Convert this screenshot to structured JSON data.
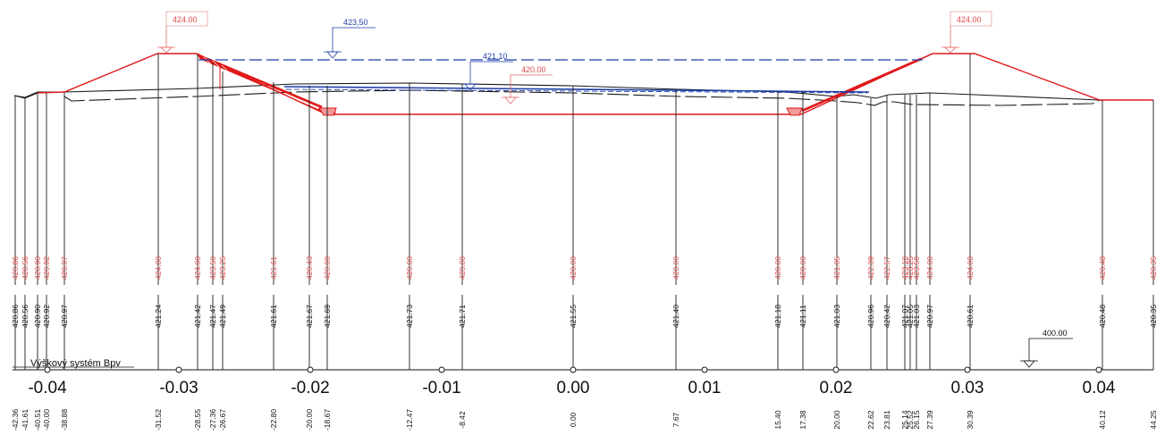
{
  "colors": {
    "design": "#e11a1a",
    "terrain": "#1a1a1a",
    "water": "#1f3fa6",
    "label_red": "#e24a4a"
  },
  "levels": {
    "crest_left": "424.00",
    "crest_right": "424.00",
    "flood_level": "423,50",
    "normal_level": "421,10",
    "bottom_level": "420.00",
    "datum": "400.00"
  },
  "reference_system": "Výškový systém Bpv",
  "axis_ticks": [
    "-0.04",
    "-0.03",
    "-0.02",
    "-0.01",
    "0.00",
    "0.01",
    "0.02",
    "0.03",
    "0.04"
  ],
  "columns": [
    {
      "design": "420.86",
      "terrain": "420.86",
      "distance": "-42.36"
    },
    {
      "design": "420.56",
      "terrain": "420.56",
      "distance": "-41.61"
    },
    {
      "design": "420.90",
      "terrain": "420.90",
      "distance": "-40.51"
    },
    {
      "design": "420.92",
      "terrain": "420.92",
      "distance": "-40.00"
    },
    {
      "design": "420.97",
      "terrain": "420.97",
      "distance": "-38.88"
    },
    {
      "design": "424.00",
      "terrain": "421.24",
      "distance": "-31.52"
    },
    {
      "design": "424.00",
      "terrain": "421.42",
      "distance": "-28.55"
    },
    {
      "design": "423.50",
      "terrain": "421.47",
      "distance": "-27.36"
    },
    {
      "design": "423.25",
      "terrain": "421.49",
      "distance": "-26.67"
    },
    {
      "design": "421.61",
      "terrain": "421.61",
      "distance": "-22.80"
    },
    {
      "design": "420.43",
      "terrain": "421.67",
      "distance": "-20.00"
    },
    {
      "design": "420.00",
      "terrain": "421.69",
      "distance": "-18.67"
    },
    {
      "design": "420.00",
      "terrain": "421.73",
      "distance": "-12.47"
    },
    {
      "design": "420.00",
      "terrain": "421.71",
      "distance": "-8.42"
    },
    {
      "design": "420.00",
      "terrain": "421.55",
      "distance": "0.00"
    },
    {
      "design": "420.00",
      "terrain": "421.40",
      "distance": "7.67"
    },
    {
      "design": "420.00",
      "terrain": "421.18",
      "distance": "15.40"
    },
    {
      "design": "420.00",
      "terrain": "421.11",
      "distance": "17.38"
    },
    {
      "design": "421.05",
      "terrain": "421.03",
      "distance": "20.00"
    },
    {
      "design": "422.09",
      "terrain": "420.96",
      "distance": "22.62"
    },
    {
      "design": "422.57",
      "terrain": "420.42",
      "distance": "23.81"
    },
    {
      "design": "423.10",
      "terrain": "421.07",
      "distance": "25.14"
    },
    {
      "design": "423.25",
      "terrain": "421.05",
      "distance": "25.52"
    },
    {
      "design": "423.50",
      "terrain": "421.03",
      "distance": "26.15"
    },
    {
      "design": "424.00",
      "terrain": "420.97",
      "distance": "27.39"
    },
    {
      "design": "424.00",
      "terrain": "420.61",
      "distance": "30.39"
    },
    {
      "design": "420.48",
      "terrain": "420.48",
      "distance": "40.12"
    },
    {
      "design": "420.35",
      "terrain": "420.35",
      "distance": "44.25"
    }
  ]
}
